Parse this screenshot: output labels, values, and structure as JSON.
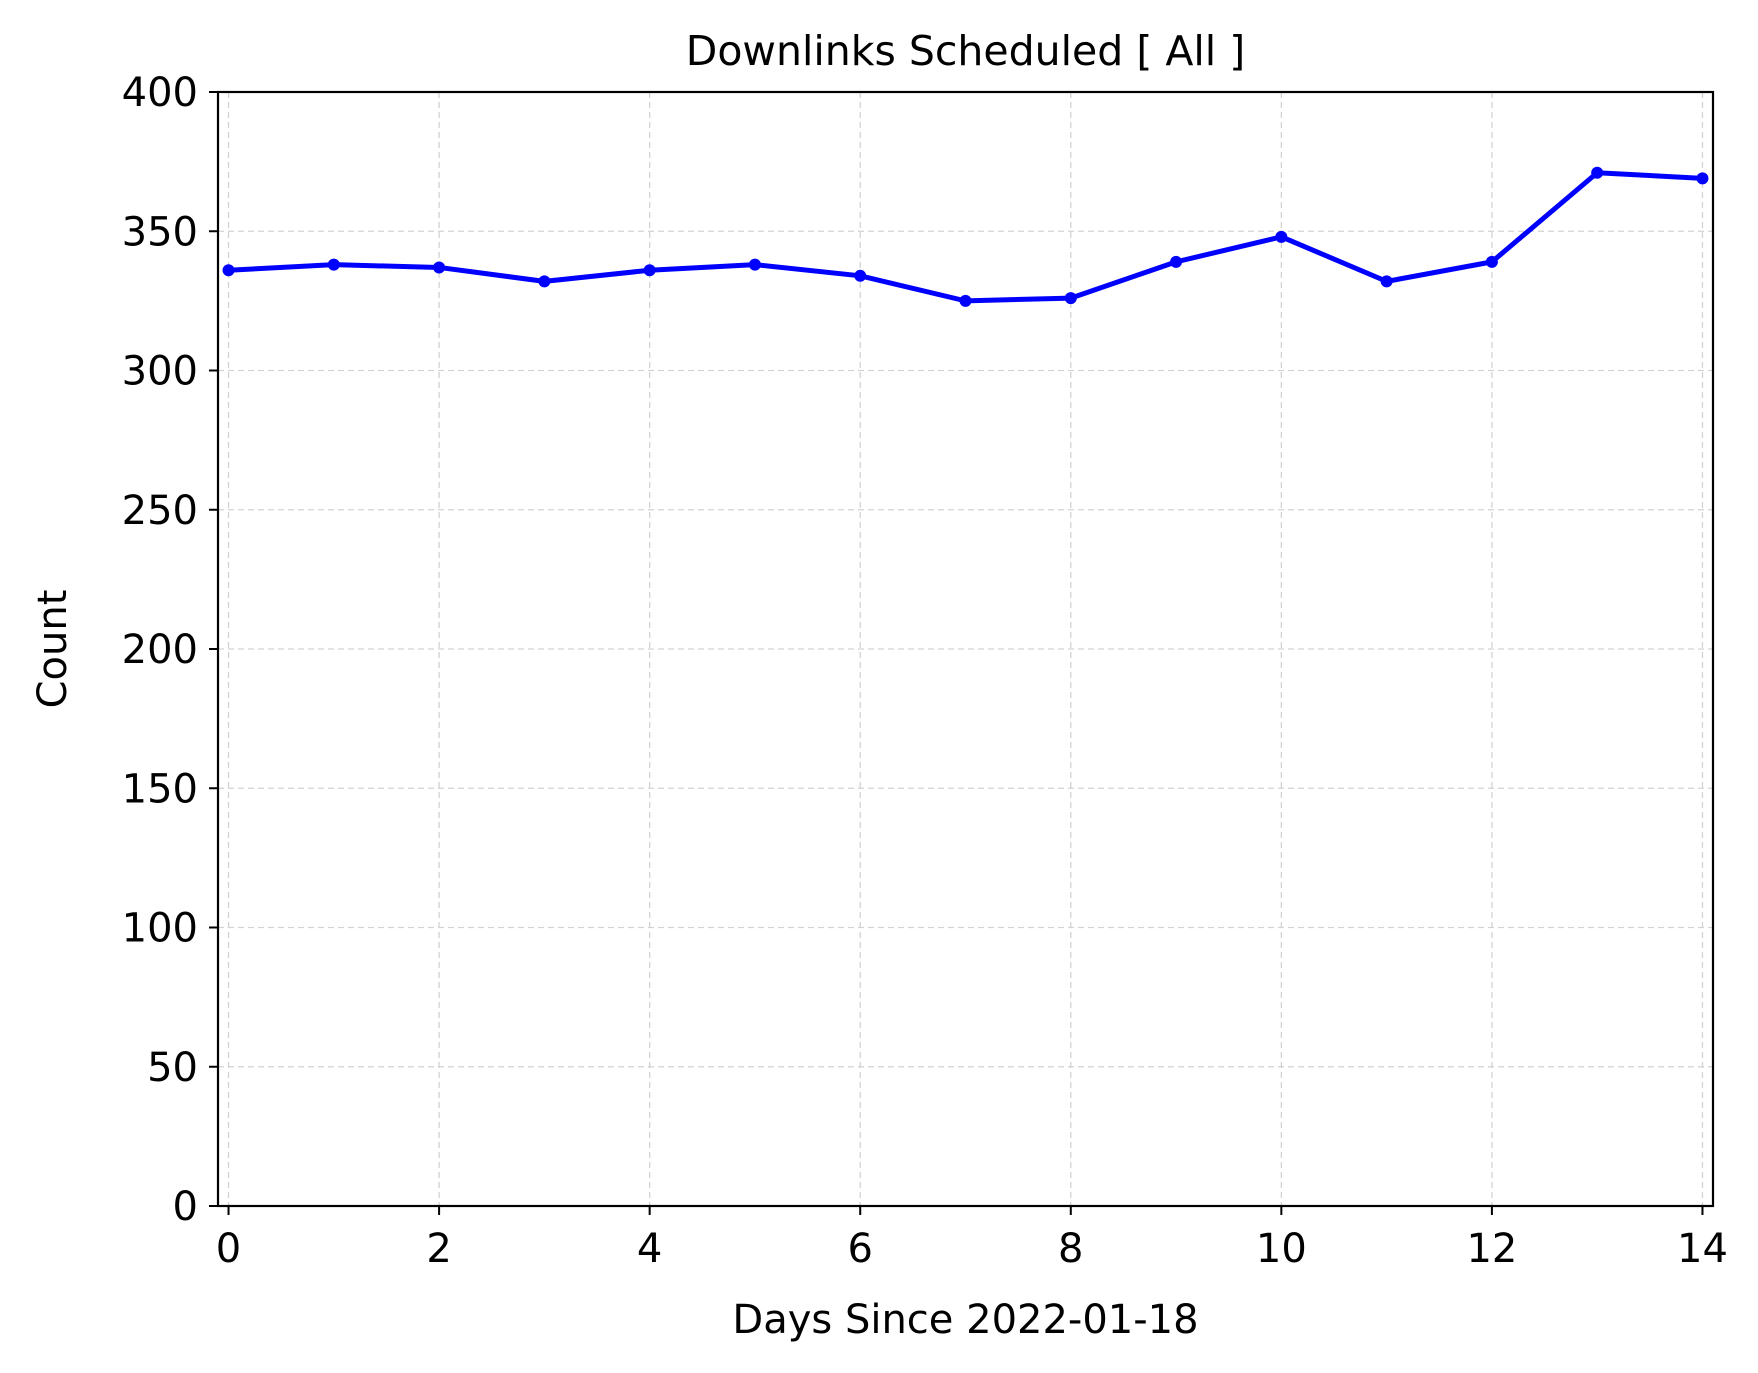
{
  "chart_data": {
    "type": "line",
    "title": "Downlinks Scheduled [ All ]",
    "xlabel": "Days Since 2022-01-18",
    "ylabel": "Count",
    "xlim": [
      -0.1,
      14.1
    ],
    "ylim": [
      0,
      400
    ],
    "x_ticks": [
      0,
      2,
      4,
      6,
      8,
      10,
      12,
      14
    ],
    "y_ticks": [
      0,
      50,
      100,
      150,
      200,
      250,
      300,
      350,
      400
    ],
    "grid": true,
    "series": [
      {
        "color": "#0000ff",
        "marker": "dot",
        "x": [
          0,
          1,
          2,
          3,
          4,
          5,
          6,
          7,
          8,
          9,
          10,
          11,
          12,
          13,
          14
        ],
        "y": [
          336,
          338,
          337,
          332,
          336,
          338,
          334,
          325,
          326,
          339,
          348,
          332,
          339,
          371,
          369
        ]
      }
    ]
  }
}
